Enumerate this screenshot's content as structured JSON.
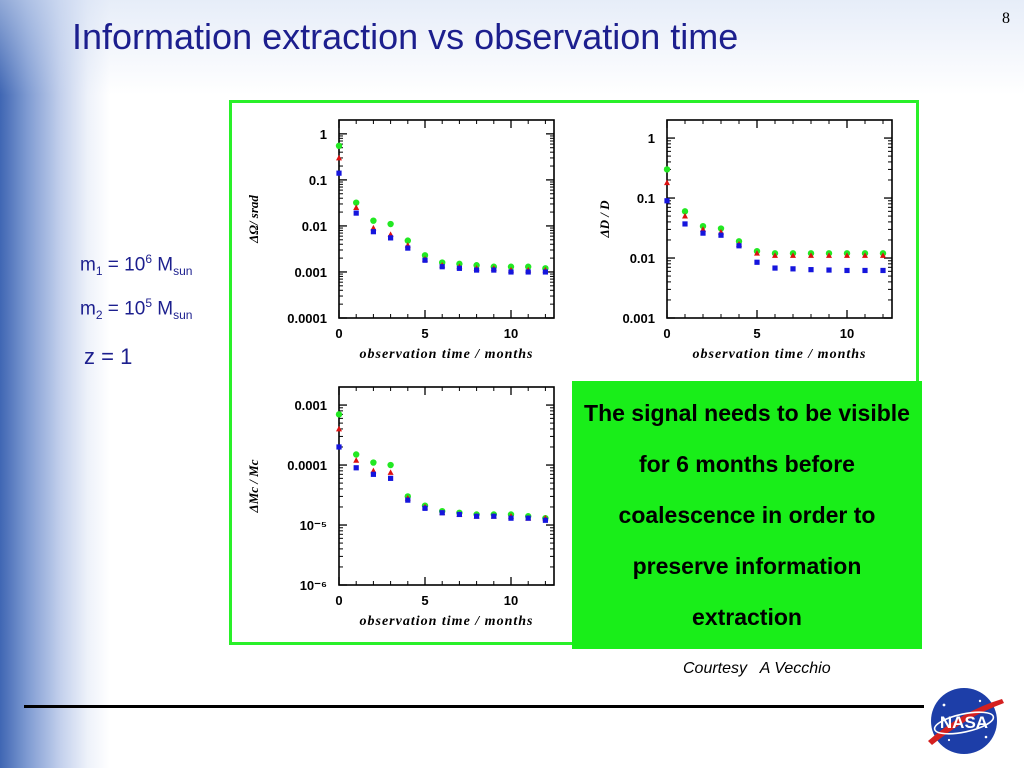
{
  "slide": {
    "title": "Information extraction vs observation time",
    "page_number": "8",
    "params": {
      "m1": {
        "prefix": "m",
        "sub": "1",
        "mid": " = 10",
        "sup": "6",
        "unit": " M",
        "unit_sub": "sun"
      },
      "m2": {
        "prefix": "m",
        "sub": "2",
        "mid": " = 10",
        "sup": "5",
        "unit": " M",
        "unit_sub": "sun"
      },
      "z": "z = 1"
    },
    "callout": "The signal needs to be visible for 6 months before coalescence in order to preserve information extraction",
    "courtesy": "Courtesy   A Vecchio",
    "logo_text": "NASA",
    "colors": {
      "title": "#1c1f8e",
      "frame": "#29f029",
      "callout": "#19ee19",
      "green": "#22e822",
      "red": "#dd1111",
      "blue": "#1515dd"
    }
  },
  "chart_data": [
    {
      "type": "scatter",
      "title": "",
      "xlabel": "observation time / months",
      "ylabel": "ΔΩ/ srad",
      "yscale": "log",
      "xlim": [
        0,
        12.5
      ],
      "ylim": [
        0.0001,
        2
      ],
      "xticks": [
        0,
        5,
        10
      ],
      "xtick_labels": [
        "0",
        "5",
        "10"
      ],
      "yticks": [
        0.0001,
        0.001,
        0.01,
        0.1,
        1
      ],
      "ytick_labels": [
        "0.0001",
        "0.001",
        "0.01",
        "0.1",
        "1"
      ],
      "series": [
        {
          "color": "#22e822",
          "marker": "circle",
          "x": [
            0,
            1,
            2,
            3,
            4,
            5,
            6,
            7,
            8,
            9,
            10,
            11,
            12
          ],
          "y": [
            0.55,
            0.032,
            0.013,
            0.011,
            0.0048,
            0.0023,
            0.0016,
            0.0015,
            0.0014,
            0.0013,
            0.0013,
            0.0013,
            0.0012
          ]
        },
        {
          "color": "#dd1111",
          "marker": "triangle",
          "x": [
            0,
            1,
            2,
            3,
            4,
            5,
            6,
            7,
            8,
            9,
            10,
            11,
            12
          ],
          "y": [
            0.3,
            0.025,
            0.009,
            0.0065,
            0.0038,
            0.0019,
            0.0014,
            0.0013,
            0.0012,
            0.0012,
            0.0011,
            0.0011,
            0.0011
          ]
        },
        {
          "color": "#1515dd",
          "marker": "square",
          "x": [
            0,
            1,
            2,
            3,
            4,
            5,
            6,
            7,
            8,
            9,
            10,
            11,
            12
          ],
          "y": [
            0.14,
            0.019,
            0.0075,
            0.0055,
            0.0033,
            0.0018,
            0.0013,
            0.0012,
            0.0011,
            0.0011,
            0.001,
            0.001,
            0.001
          ]
        }
      ]
    },
    {
      "type": "scatter",
      "title": "",
      "xlabel": "observation time / months",
      "ylabel": "ΔD / D",
      "yscale": "log",
      "xlim": [
        0,
        12.5
      ],
      "ylim": [
        0.001,
        2
      ],
      "xticks": [
        0,
        5,
        10
      ],
      "xtick_labels": [
        "0",
        "5",
        "10"
      ],
      "yticks": [
        0.001,
        0.01,
        0.1,
        1
      ],
      "ytick_labels": [
        "0.001",
        "0.01",
        "0.1",
        "1"
      ],
      "series": [
        {
          "color": "#22e822",
          "marker": "circle",
          "x": [
            0,
            1,
            2,
            3,
            4,
            5,
            6,
            7,
            8,
            9,
            10,
            11,
            12
          ],
          "y": [
            0.3,
            0.06,
            0.034,
            0.031,
            0.019,
            0.013,
            0.012,
            0.012,
            0.012,
            0.012,
            0.012,
            0.012,
            0.012
          ]
        },
        {
          "color": "#dd1111",
          "marker": "triangle",
          "x": [
            0,
            1,
            2,
            3,
            4,
            5,
            6,
            7,
            8,
            9,
            10,
            11,
            12
          ],
          "y": [
            0.18,
            0.05,
            0.03,
            0.027,
            0.017,
            0.012,
            0.011,
            0.011,
            0.011,
            0.011,
            0.011,
            0.011,
            0.011
          ]
        },
        {
          "color": "#1515dd",
          "marker": "square",
          "x": [
            0,
            1,
            2,
            3,
            4,
            5,
            6,
            7,
            8,
            9,
            10,
            11,
            12
          ],
          "y": [
            0.09,
            0.037,
            0.026,
            0.024,
            0.016,
            0.0085,
            0.0068,
            0.0066,
            0.0064,
            0.0063,
            0.0062,
            0.0062,
            0.0062
          ]
        }
      ]
    },
    {
      "type": "scatter",
      "title": "",
      "xlabel": "observation time / months",
      "ylabel": "ΔMc / Mc",
      "yscale": "log",
      "xlim": [
        0,
        12.5
      ],
      "ylim": [
        1e-06,
        0.002
      ],
      "xticks": [
        0,
        5,
        10
      ],
      "xtick_labels": [
        "0",
        "5",
        "10"
      ],
      "yticks": [
        1e-06,
        1e-05,
        0.0001,
        0.001
      ],
      "ytick_labels": [
        "10⁻⁶",
        "10⁻⁵",
        "0.0001",
        "0.001"
      ],
      "series": [
        {
          "color": "#22e822",
          "marker": "circle",
          "x": [
            0,
            1,
            2,
            3,
            4,
            5,
            6,
            7,
            8,
            9,
            10,
            11,
            12
          ],
          "y": [
            0.0007,
            0.00015,
            0.00011,
            0.0001,
            3e-05,
            2.1e-05,
            1.7e-05,
            1.6e-05,
            1.5e-05,
            1.5e-05,
            1.5e-05,
            1.4e-05,
            1.3e-05
          ]
        },
        {
          "color": "#dd1111",
          "marker": "triangle",
          "x": [
            0,
            1,
            2,
            3,
            4,
            5,
            6,
            7,
            8,
            9,
            10,
            11,
            12
          ],
          "y": [
            0.0004,
            0.00012,
            8e-05,
            7.5e-05,
            2.8e-05,
            2e-05,
            1.6e-05,
            1.5e-05,
            1.4e-05,
            1.4e-05,
            1.4e-05,
            1.3e-05,
            1.3e-05
          ]
        },
        {
          "color": "#1515dd",
          "marker": "square",
          "x": [
            0,
            1,
            2,
            3,
            4,
            5,
            6,
            7,
            8,
            9,
            10,
            11,
            12
          ],
          "y": [
            0.0002,
            9e-05,
            7e-05,
            6e-05,
            2.6e-05,
            1.9e-05,
            1.6e-05,
            1.5e-05,
            1.4e-05,
            1.4e-05,
            1.3e-05,
            1.3e-05,
            1.2e-05
          ]
        }
      ]
    }
  ]
}
